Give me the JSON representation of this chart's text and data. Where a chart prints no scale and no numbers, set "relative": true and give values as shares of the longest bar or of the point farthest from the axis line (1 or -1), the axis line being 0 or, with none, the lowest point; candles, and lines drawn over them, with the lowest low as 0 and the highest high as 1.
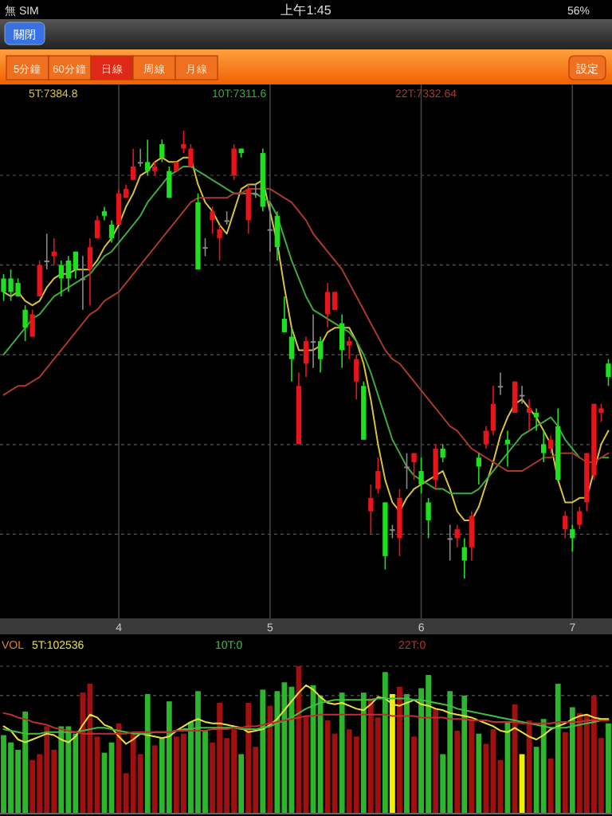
{
  "chart_data": [
    {
      "type": "other",
      "annotations": [
        "無 SIM",
        "上午1:45",
        "56%",
        "關閉",
        "5分鐘",
        "60分鐘",
        "日線",
        "周線",
        "月線",
        "設定"
      ]
    },
    {
      "type": "candlestick",
      "relative": true,
      "grid": true,
      "legend": "top",
      "categories": [
        null,
        null,
        null,
        null,
        null,
        null,
        null,
        null,
        null,
        null,
        null,
        null,
        null,
        null,
        null,
        null,
        "4",
        null,
        null,
        null,
        null,
        null,
        null,
        null,
        null,
        null,
        null,
        null,
        null,
        null,
        null,
        null,
        null,
        null,
        null,
        null,
        null,
        "5",
        null,
        null,
        null,
        null,
        null,
        null,
        null,
        null,
        null,
        null,
        null,
        null,
        null,
        null,
        null,
        null,
        null,
        null,
        null,
        null,
        "6",
        null,
        null,
        null,
        null,
        null,
        null,
        null,
        null,
        null,
        null,
        null,
        null,
        null,
        null,
        null,
        null,
        null,
        null,
        null,
        null,
        "7",
        null,
        null,
        null,
        null,
        null
      ],
      "ohlc": [
        [
          0.67,
          0.68,
          0.62,
          0.64
        ],
        [
          0.67,
          0.69,
          0.62,
          0.64
        ],
        [
          0.66,
          0.67,
          0.63,
          0.63
        ],
        [
          0.6,
          0.61,
          0.53,
          0.56
        ],
        [
          0.54,
          0.6,
          0.54,
          0.59
        ],
        [
          0.63,
          0.71,
          0.63,
          0.7
        ],
        [
          0.71,
          0.77,
          0.69,
          0.71
        ],
        [
          0.72,
          0.76,
          0.7,
          0.73
        ],
        [
          0.7,
          0.71,
          0.63,
          0.67
        ],
        [
          0.71,
          0.72,
          0.64,
          0.67
        ],
        [
          0.73,
          0.73,
          0.67,
          0.69
        ],
        [
          0.67,
          0.72,
          0.6,
          0.67
        ],
        [
          0.69,
          0.76,
          0.61,
          0.74
        ],
        [
          0.76,
          0.81,
          0.76,
          0.8
        ],
        [
          0.82,
          0.83,
          0.8,
          0.81
        ],
        [
          0.79,
          0.8,
          0.75,
          0.76
        ],
        [
          0.79,
          0.87,
          0.79,
          0.86
        ],
        [
          0.85,
          0.88,
          0.85,
          0.87
        ],
        [
          0.89,
          0.96,
          0.89,
          0.92
        ],
        [
          0.93,
          0.96,
          0.92,
          0.93
        ],
        [
          0.93,
          0.98,
          0.9,
          0.91
        ],
        [
          0.91,
          0.93,
          0.9,
          0.92
        ],
        [
          0.97,
          0.98,
          0.93,
          0.94
        ],
        [
          0.91,
          0.92,
          0.85,
          0.85
        ],
        [
          0.91,
          0.93,
          0.91,
          0.93
        ],
        [
          0.96,
          1.0,
          0.95,
          0.97
        ],
        [
          0.92,
          0.97,
          0.92,
          0.96
        ],
        [
          0.84,
          0.86,
          0.69,
          0.69
        ],
        [
          0.74,
          0.76,
          0.72,
          0.74
        ],
        [
          0.8,
          0.83,
          0.77,
          0.82
        ],
        [
          0.76,
          0.79,
          0.71,
          0.78
        ],
        [
          0.8,
          0.82,
          0.79,
          0.8
        ],
        [
          0.9,
          0.97,
          0.89,
          0.96
        ],
        [
          0.96,
          0.96,
          0.94,
          0.95
        ],
        [
          0.8,
          0.88,
          0.77,
          0.87
        ],
        [
          0.86,
          0.88,
          0.85,
          0.86
        ],
        [
          0.95,
          0.96,
          0.82,
          0.83
        ],
        [
          0.78,
          0.84,
          0.73,
          0.78
        ],
        [
          0.81,
          0.82,
          0.71,
          0.74
        ],
        [
          0.58,
          0.63,
          0.55,
          0.55
        ],
        [
          0.54,
          0.56,
          0.44,
          0.49
        ],
        [
          0.3,
          0.46,
          0.3,
          0.43
        ],
        [
          0.48,
          0.54,
          0.45,
          0.53
        ],
        [
          0.53,
          0.59,
          0.47,
          0.53
        ],
        [
          0.53,
          0.54,
          0.46,
          0.49
        ],
        [
          0.59,
          0.66,
          0.56,
          0.64
        ],
        [
          0.6,
          0.64,
          0.6,
          0.64
        ],
        [
          0.57,
          0.59,
          0.47,
          0.51
        ],
        [
          0.52,
          0.54,
          0.49,
          0.53
        ],
        [
          0.44,
          0.5,
          0.4,
          0.49
        ],
        [
          0.43,
          0.44,
          0.31,
          0.31
        ],
        [
          0.15,
          0.21,
          0.1,
          0.18
        ],
        [
          0.2,
          0.27,
          0.19,
          0.24
        ],
        [
          0.17,
          0.17,
          0.02,
          0.05
        ],
        [
          0.11,
          0.12,
          0.09,
          0.11
        ],
        [
          0.09,
          0.2,
          0.05,
          0.18
        ],
        [
          0.25,
          0.28,
          0.2,
          0.25
        ],
        [
          0.26,
          0.28,
          0.22,
          0.28
        ],
        [
          0.24,
          0.27,
          0.19,
          0.21
        ],
        [
          0.17,
          0.18,
          0.09,
          0.13
        ],
        [
          0.22,
          0.3,
          0.2,
          0.29
        ],
        [
          0.29,
          0.3,
          0.26,
          0.27
        ],
        [
          0.09,
          0.12,
          0.04,
          0.09
        ],
        [
          0.09,
          0.12,
          0.07,
          0.11
        ],
        [
          0.07,
          0.09,
          0.0,
          0.04
        ],
        [
          0.07,
          0.15,
          0.04,
          0.14
        ],
        [
          0.27,
          0.28,
          0.21,
          0.25
        ],
        [
          0.3,
          0.34,
          0.29,
          0.33
        ],
        [
          0.33,
          0.43,
          0.32,
          0.39
        ],
        [
          0.43,
          0.46,
          0.41,
          0.43
        ],
        [
          0.31,
          0.33,
          0.25,
          0.3
        ],
        [
          0.37,
          0.44,
          0.37,
          0.44
        ],
        [
          0.41,
          0.43,
          0.39,
          0.41
        ],
        [
          0.37,
          0.4,
          0.33,
          0.38
        ],
        [
          0.37,
          0.38,
          0.33,
          0.36
        ],
        [
          0.3,
          0.33,
          0.26,
          0.28
        ],
        [
          0.29,
          0.32,
          0.28,
          0.31
        ],
        [
          0.34,
          0.38,
          0.22,
          0.22
        ],
        [
          0.11,
          0.15,
          0.09,
          0.14
        ],
        [
          0.11,
          0.12,
          0.06,
          0.09
        ],
        [
          0.12,
          0.16,
          0.11,
          0.15
        ],
        [
          0.17,
          0.28,
          0.15,
          0.28
        ],
        [
          0.23,
          0.39,
          0.22,
          0.39
        ],
        [
          0.37,
          0.39,
          0.35,
          0.38
        ],
        [
          0.48,
          0.49,
          0.43,
          0.45
        ]
      ],
      "colors": [
        "#1fe01f",
        "#1fe01f",
        "#1fe01f",
        "#1fe01f",
        "#e8141a",
        "#e8141a",
        "#8a8a8a",
        "#e8141a",
        "#1fe01f",
        "#1fe01f",
        "#1fe01f",
        "#8a8a8a",
        "#e8141a",
        "#e8141a",
        "#1fe01f",
        "#1fe01f",
        "#e8141a",
        "#e8141a",
        "#e8141a",
        "#8a8a8a",
        "#1fe01f",
        "#e8141a",
        "#1fe01f",
        "#1fe01f",
        "#e8141a",
        "#e8141a",
        "#e8141a",
        "#1fe01f",
        "#8a8a8a",
        "#e8141a",
        "#e8141a",
        "#8a8a8a",
        "#e8141a",
        "#1fe01f",
        "#e8141a",
        "#8a8a8a",
        "#1fe01f",
        "#8a8a8a",
        "#1fe01f",
        "#1fe01f",
        "#1fe01f",
        "#e8141a",
        "#e8141a",
        "#8a8a8a",
        "#1fe01f",
        "#e8141a",
        "#e8141a",
        "#1fe01f",
        "#e8141a",
        "#e8141a",
        "#1fe01f",
        "#e8141a",
        "#e8141a",
        "#1fe01f",
        "#8a8a8a",
        "#e8141a",
        "#8a8a8a",
        "#e8141a",
        "#1fe01f",
        "#1fe01f",
        "#e8141a",
        "#1fe01f",
        "#8a8a8a",
        "#e8141a",
        "#1fe01f",
        "#e8141a",
        "#1fe01f",
        "#e8141a",
        "#e8141a",
        "#8a8a8a",
        "#1fe01f",
        "#e8141a",
        "#8a8a8a",
        "#e8141a",
        "#1fe01f",
        "#1fe01f",
        "#e8141a",
        "#1fe01f",
        "#e8141a",
        "#1fe01f",
        "#e8141a",
        "#e8141a",
        "#e8141a",
        "#e8141a",
        "#1fe01f"
      ],
      "series": [
        {
          "type": "line",
          "name": "5T:7384.8",
          "color": "#d8c040",
          "values": [
            0.64,
            0.63,
            0.64,
            0.62,
            0.61,
            0.62,
            0.65,
            0.67,
            0.68,
            0.68,
            0.69,
            0.69,
            0.69,
            0.71,
            0.74,
            0.76,
            0.79,
            0.83,
            0.86,
            0.9,
            0.91,
            0.93,
            0.94,
            0.93,
            0.93,
            0.94,
            0.94,
            0.88,
            0.84,
            0.82,
            0.79,
            0.77,
            0.82,
            0.87,
            0.88,
            0.88,
            0.89,
            0.82,
            0.75,
            0.65,
            0.56,
            0.51,
            0.51,
            0.51,
            0.52,
            0.55,
            0.56,
            0.56,
            0.56,
            0.53,
            0.48,
            0.4,
            0.3,
            0.22,
            0.17,
            0.15,
            0.18,
            0.2,
            0.21,
            0.22,
            0.23,
            0.24,
            0.2,
            0.15,
            0.13,
            0.13,
            0.16,
            0.21,
            0.26,
            0.32,
            0.36,
            0.39,
            0.4,
            0.38,
            0.36,
            0.33,
            0.3,
            0.22,
            0.17,
            0.17,
            0.18,
            0.18,
            0.24,
            0.3,
            0.33
          ]
        },
        {
          "type": "line",
          "name": "10T:7311.6",
          "color": "#3fa83f",
          "values": [
            0.5,
            0.52,
            0.54,
            0.56,
            0.58,
            0.59,
            0.61,
            0.63,
            0.64,
            0.65,
            0.66,
            0.67,
            0.68,
            0.7,
            0.72,
            0.73,
            0.75,
            0.77,
            0.79,
            0.81,
            0.84,
            0.86,
            0.88,
            0.9,
            0.91,
            0.92,
            0.92,
            0.91,
            0.9,
            0.89,
            0.88,
            0.87,
            0.86,
            0.86,
            0.86,
            0.86,
            0.85,
            0.84,
            0.81,
            0.76,
            0.71,
            0.67,
            0.63,
            0.6,
            0.59,
            0.58,
            0.57,
            0.56,
            0.55,
            0.53,
            0.5,
            0.46,
            0.41,
            0.36,
            0.31,
            0.28,
            0.25,
            0.23,
            0.22,
            0.21,
            0.2,
            0.2,
            0.19,
            0.19,
            0.19,
            0.19,
            0.2,
            0.22,
            0.24,
            0.26,
            0.28,
            0.3,
            0.32,
            0.33,
            0.34,
            0.35,
            0.36,
            0.34,
            0.31,
            0.29,
            0.27,
            null,
            null,
            0.27,
            0.27
          ]
        },
        {
          "type": "line",
          "name": "22T:7332.64",
          "color": "#a83a2a",
          "values": [
            0.41,
            0.42,
            0.43,
            0.43,
            0.44,
            0.45,
            0.47,
            0.49,
            0.51,
            0.53,
            0.55,
            0.57,
            0.59,
            0.6,
            0.62,
            0.63,
            0.64,
            0.66,
            0.68,
            0.7,
            0.72,
            0.74,
            0.76,
            0.78,
            0.8,
            0.82,
            0.84,
            0.85,
            0.85,
            0.85,
            0.85,
            0.85,
            0.86,
            0.86,
            0.87,
            0.87,
            0.87,
            0.87,
            0.86,
            0.85,
            0.84,
            0.82,
            0.8,
            0.77,
            0.75,
            0.73,
            0.71,
            0.69,
            0.66,
            0.63,
            0.6,
            0.57,
            0.54,
            0.51,
            0.49,
            0.48,
            0.46,
            0.44,
            0.42,
            0.4,
            0.38,
            0.36,
            0.34,
            0.33,
            0.31,
            0.29,
            0.28,
            0.27,
            0.26,
            0.25,
            0.24,
            0.24,
            0.24,
            0.25,
            0.26,
            0.27,
            0.27,
            0.28,
            0.28,
            0.28,
            0.27,
            0.26,
            0.26,
            0.27,
            0.28
          ]
        }
      ]
    },
    {
      "type": "bar",
      "relative": true,
      "title": "VOL",
      "legend": "top",
      "ref_lines": [
        {
          "axis": "y",
          "value": 1.0,
          "line_style": "dashed"
        },
        {
          "axis": "y",
          "value": 0.8,
          "line_style": "dashed"
        }
      ],
      "categories": [
        null,
        null,
        null,
        null,
        null,
        null,
        null,
        null,
        null,
        null,
        null,
        null,
        null,
        null,
        null,
        null,
        null,
        null,
        null,
        null,
        null,
        null,
        null,
        null,
        null,
        null,
        null,
        null,
        null,
        null,
        null,
        null,
        null,
        null,
        null,
        null,
        null,
        null,
        null,
        null,
        null,
        null,
        null,
        null,
        null,
        null,
        null,
        null,
        null,
        null,
        null,
        null,
        null,
        null,
        null,
        null,
        null,
        null,
        null,
        null,
        null,
        null,
        null,
        null,
        null,
        null,
        null,
        null,
        null,
        null,
        null,
        null,
        null,
        null,
        null,
        null,
        null,
        null,
        null,
        null,
        null,
        null,
        null,
        null,
        null
      ],
      "series": [
        {
          "type": "bar",
          "values": [
            0.53,
            0.48,
            0.43,
            0.69,
            0.36,
            0.4,
            0.59,
            0.43,
            0.59,
            0.59,
            0.54,
            0.82,
            0.88,
            0.52,
            0.41,
            0.48,
            0.61,
            0.27,
            0.55,
            0.4,
            0.81,
            0.46,
            0.51,
            0.76,
            0.52,
            0.54,
            0.62,
            0.83,
            0.56,
            0.48,
            0.75,
            0.51,
            0.57,
            0.4,
            0.75,
            0.45,
            0.84,
            0.73,
            0.83,
            0.89,
            0.86,
            1.0,
            0.66,
            0.87,
            0.8,
            0.63,
            0.54,
            0.82,
            0.57,
            0.52,
            0.82,
            0.78,
            0.65,
            0.96,
            0.81,
            0.86,
            0.81,
            0.52,
            0.85,
            0.94,
            0.71,
            0.4,
            0.83,
            0.56,
            0.8,
            0.64,
            0.54,
            0.47,
            0.57,
            0.36,
            0.62,
            0.74,
            0.4,
            0.63,
            0.45,
            0.64,
            0.37,
            0.88,
            0.55,
            0.72,
            0.68,
            0.67,
            0.8,
            0.51,
            0.61
          ],
          "colors": [
            "#2db52d",
            "#2db52d",
            "#2db52d",
            "#2db52d",
            "#a01010",
            "#a01010",
            "#a01010",
            "#a01010",
            "#2db52d",
            "#2db52d",
            "#2db52d",
            "#a01010",
            "#a01010",
            "#a01010",
            "#2db52d",
            "#2db52d",
            "#a01010",
            "#a01010",
            "#a01010",
            "#a01010",
            "#2db52d",
            "#a01010",
            "#2db52d",
            "#2db52d",
            "#a01010",
            "#a01010",
            "#2db52d",
            "#2db52d",
            "#2db52d",
            "#a01010",
            "#a01010",
            "#a01010",
            "#a01010",
            "#2db52d",
            "#a01010",
            "#a01010",
            "#2db52d",
            "#a01010",
            "#2db52d",
            "#2db52d",
            "#2db52d",
            "#a01010",
            "#a01010",
            "#2db52d",
            "#2db52d",
            "#a01010",
            "#a01010",
            "#2db52d",
            "#a01010",
            "#a01010",
            "#2db52d",
            "#a01010",
            "#a01010",
            "#2db52d",
            "#f0f000",
            "#a01010",
            "#2db52d",
            "#a01010",
            "#2db52d",
            "#2db52d",
            "#a01010",
            "#2db52d",
            "#2db52d",
            "#a01010",
            "#2db52d",
            "#a01010",
            "#2db52d",
            "#a01010",
            "#a01010",
            "#a01010",
            "#2db52d",
            "#a01010",
            "#f0f000",
            "#a01010",
            "#2db52d",
            "#2db52d",
            "#a01010",
            "#2db52d",
            "#a01010",
            "#2db52d",
            "#a01010",
            "#a01010",
            "#a01010",
            "#a01010",
            "#2db52d"
          ]
        },
        {
          "type": "line",
          "name": "5T:102536",
          "color": "#e8e040",
          "values": [
            0.59,
            0.56,
            0.5,
            0.48,
            0.5,
            0.52,
            0.54,
            0.53,
            0.5,
            0.48,
            0.52,
            0.6,
            0.67,
            0.65,
            0.6,
            0.58,
            0.52,
            0.47,
            0.5,
            0.54,
            0.53,
            0.52,
            0.51,
            0.52,
            0.56,
            0.59,
            0.62,
            0.64,
            0.62,
            0.61,
            0.61,
            0.6,
            0.59,
            0.58,
            0.55,
            0.56,
            0.57,
            0.6,
            0.64,
            0.7,
            0.76,
            0.82,
            0.87,
            0.84,
            0.79,
            0.75,
            0.74,
            0.75,
            0.73,
            0.71,
            0.7,
            0.74,
            0.79,
            0.78,
            0.74,
            0.73,
            0.75,
            0.77,
            0.74,
            0.73,
            0.71,
            0.7,
            0.68,
            0.67,
            0.66,
            0.65,
            0.63,
            0.61,
            0.59,
            0.56,
            0.55,
            0.58,
            0.55,
            0.52,
            0.5,
            0.53,
            0.57,
            0.59,
            0.61,
            0.64,
            0.66,
            0.67,
            0.65,
            0.64,
            0.64
          ]
        },
        {
          "type": "line",
          "name": "10T:0",
          "color": "#40c040",
          "values": [
            0.57,
            0.56,
            0.55,
            0.54,
            0.54,
            0.54,
            0.55,
            0.55,
            0.55,
            0.55,
            0.55,
            0.56,
            0.57,
            0.58,
            0.58,
            0.57,
            0.56,
            0.55,
            0.54,
            0.54,
            0.54,
            0.55,
            0.55,
            0.55,
            0.56,
            0.57,
            0.57,
            0.58,
            0.58,
            0.58,
            0.58,
            0.58,
            0.58,
            0.57,
            0.57,
            0.57,
            0.58,
            0.59,
            0.61,
            0.63,
            0.65,
            0.68,
            0.71,
            0.73,
            0.75,
            0.76,
            0.77,
            0.77,
            0.77,
            0.77,
            0.77,
            0.77,
            0.78,
            0.78,
            0.78,
            0.78,
            0.78,
            0.77,
            0.77,
            0.76,
            0.75,
            0.74,
            0.73,
            0.71,
            0.7,
            0.69,
            0.68,
            0.67,
            0.66,
            0.65,
            0.64,
            0.63,
            0.62,
            0.61,
            0.6,
            0.59,
            0.58,
            0.58,
            0.58,
            0.59,
            0.6,
            0.61,
            0.62,
            0.63,
            0.63
          ]
        },
        {
          "type": "line",
          "name": "22T:0",
          "color": "#c03030",
          "values": [
            0.68,
            0.67,
            0.65,
            0.64,
            0.62,
            0.61,
            0.6,
            0.58,
            0.57,
            0.56,
            0.55,
            0.54,
            0.54,
            0.54,
            0.54,
            0.54,
            0.54,
            0.54,
            0.55,
            0.55,
            0.55,
            0.55,
            0.55,
            0.55,
            0.56,
            0.56,
            0.56,
            0.56,
            0.56,
            0.57,
            0.57,
            0.57,
            0.58,
            0.58,
            0.59,
            0.59,
            0.6,
            0.61,
            0.62,
            0.63,
            0.64,
            0.65,
            0.66,
            0.66,
            0.67,
            0.67,
            0.67,
            0.67,
            0.67,
            0.67,
            0.67,
            0.67,
            0.67,
            0.67,
            0.66,
            0.66,
            0.66,
            0.66,
            0.65,
            0.65,
            0.65,
            0.65,
            0.64,
            0.64,
            0.64,
            0.63,
            0.63,
            0.63,
            0.62,
            0.62,
            0.62,
            0.62,
            0.61,
            0.61,
            0.61,
            0.61,
            0.61,
            0.62,
            0.62,
            0.62,
            0.62,
            0.63,
            0.63,
            0.63,
            0.63
          ]
        }
      ]
    }
  ]
}
